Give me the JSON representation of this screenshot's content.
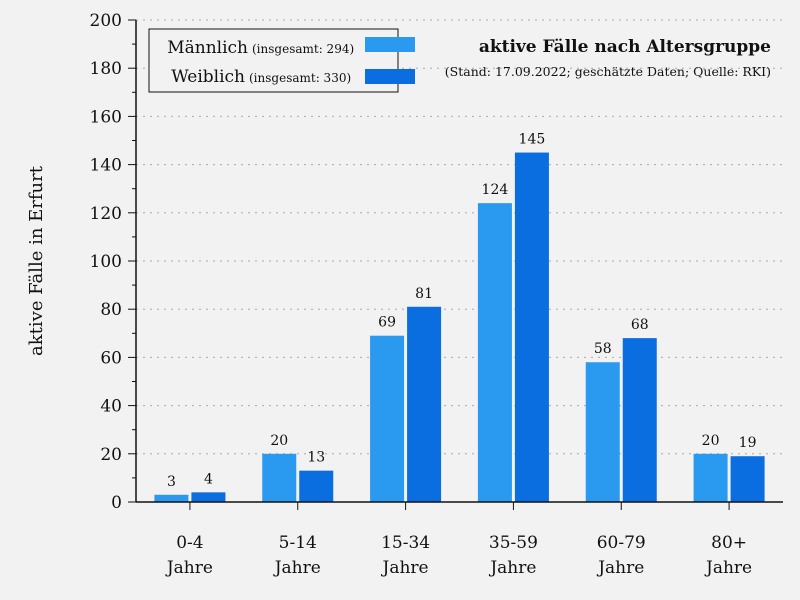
{
  "chart_data": {
    "type": "bar",
    "title": "aktive Fälle nach Altersgruppe",
    "subtitle": "(Stand: 17.09.2022; geschätzte Daten; Quelle: RKI)",
    "ylabel": "aktive Fälle in Erfurt",
    "categories": [
      [
        "0-4",
        "Jahre"
      ],
      [
        "5-14",
        "Jahre"
      ],
      [
        "15-34",
        "Jahre"
      ],
      [
        "35-59",
        "Jahre"
      ],
      [
        "60-79",
        "Jahre"
      ],
      [
        "80+",
        "Jahre"
      ]
    ],
    "series": [
      {
        "name": "Männlich",
        "total_label": "(insgesamt: 294)",
        "color": "#2a9af0",
        "values": [
          3,
          20,
          69,
          124,
          58,
          20
        ]
      },
      {
        "name": "Weiblich",
        "total_label": "(insgesamt: 330)",
        "color": "#0a6de0",
        "values": [
          4,
          13,
          81,
          145,
          68,
          19
        ]
      }
    ],
    "ylim": [
      0,
      200
    ],
    "yticks": [
      "0",
      "20",
      "40",
      "60",
      "80",
      "100",
      "120",
      "140",
      "160",
      "180",
      "200"
    ],
    "grid": true,
    "legend_position": "top-left"
  }
}
